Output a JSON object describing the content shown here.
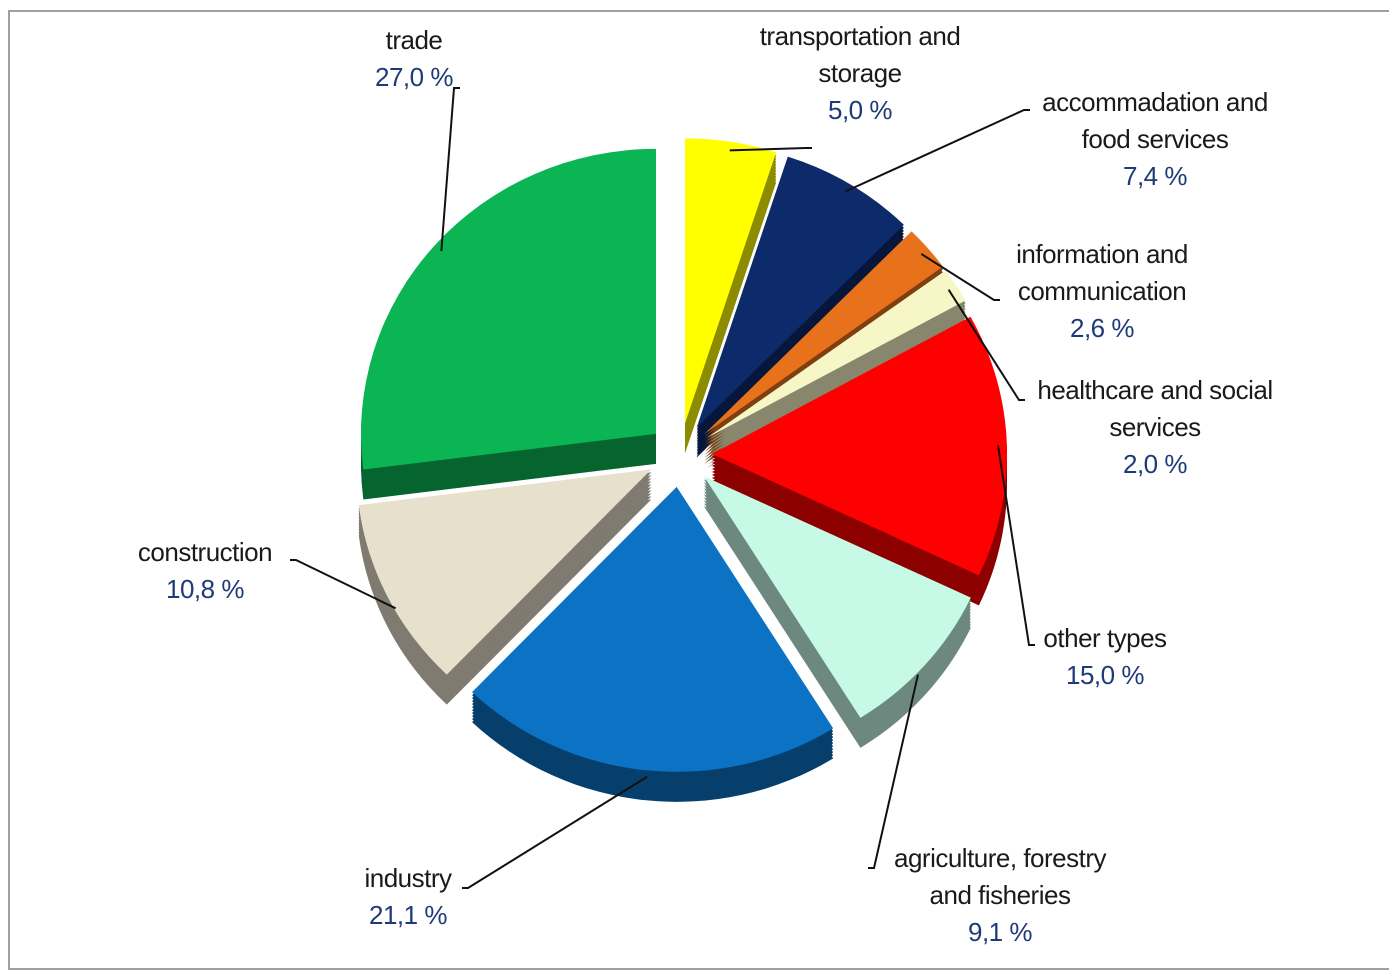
{
  "chart_data": {
    "type": "pie",
    "categories": [
      "transportation and storage",
      "accommadation and food services",
      "information and communication",
      "healthcare and social services",
      "other types",
      "agriculture, forestry and fisheries",
      "industry",
      "construction",
      "trade"
    ],
    "values": [
      5.0,
      7.4,
      2.6,
      2.0,
      15.0,
      9.1,
      21.1,
      10.8,
      27.0
    ],
    "value_labels": [
      "5,0 %",
      "7,4 %",
      "2,6 %",
      "2,0 %",
      "15,0 %",
      "9,1 %",
      "21,1 %",
      "10,8 %",
      "27,0 %"
    ],
    "colors": [
      "#ffff00",
      "#0d2a6b",
      "#e8721c",
      "#f7f6c6",
      "#ff0000",
      "#c6f9e6",
      "#0b72c4",
      "#e6e0cc",
      "#0bb554"
    ]
  }
}
